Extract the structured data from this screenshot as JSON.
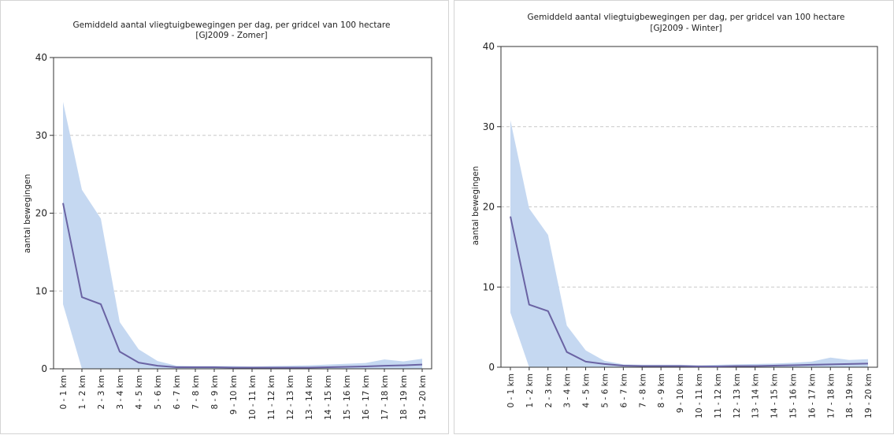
{
  "chart_data": [
    {
      "type": "line",
      "title": "Gemiddeld aantal vliegtuigbewegingen per dag, per gridcel van 100 hectare",
      "subtitle": "[GJ2009 - Zomer]",
      "xlabel": "",
      "ylabel": "aantal bewegingen",
      "ylim": [
        0,
        40
      ],
      "yticks": [
        0,
        10,
        20,
        30,
        40
      ],
      "grid": true,
      "categories": [
        "0 - 1 km",
        "1 - 2 km",
        "2 - 3 km",
        "3 - 4 km",
        "4 - 5 km",
        "5 - 6 km",
        "6 - 7 km",
        "7 - 8 km",
        "8 - 9 km",
        "9 - 10 km",
        "10 - 11 km",
        "11 - 12 km",
        "12 - 13 km",
        "13 - 14 km",
        "14 - 15 km",
        "15 - 16 km",
        "16 - 17 km",
        "17 - 18 km",
        "18 - 19 km",
        "19 - 20 km"
      ],
      "series": [
        {
          "values": [
            21.3,
            9.2,
            8.3,
            2.2,
            0.8,
            0.4,
            0.2,
            0.2,
            0.2,
            0.15,
            0.15,
            0.15,
            0.15,
            0.15,
            0.2,
            0.25,
            0.3,
            0.4,
            0.45,
            0.55
          ]
        }
      ],
      "band": {
        "upper": [
          34.3,
          23.0,
          19.3,
          6.0,
          2.5,
          1.0,
          0.4,
          0.35,
          0.35,
          0.35,
          0.3,
          0.35,
          0.4,
          0.45,
          0.55,
          0.65,
          0.75,
          1.2,
          0.95,
          1.3
        ],
        "lower": [
          8.3,
          0,
          0,
          0,
          0,
          0,
          0,
          0,
          0,
          0,
          0,
          0,
          0,
          0,
          0,
          0,
          0,
          0,
          0,
          0
        ]
      },
      "colors": {
        "line": "#6a63a3",
        "band": "#c5d8f1",
        "grid": "#c8c8c8"
      }
    },
    {
      "type": "line",
      "title": "Gemiddeld aantal vliegtuigbewegingen per dag, per gridcel van 100 hectare",
      "subtitle": "[GJ2009 - Winter]",
      "xlabel": "",
      "ylabel": "aantal bewegingen",
      "ylim": [
        0,
        40
      ],
      "yticks": [
        0,
        10,
        20,
        30,
        40
      ],
      "grid": true,
      "categories": [
        "0 - 1 km",
        "1 - 2 km",
        "2 - 3 km",
        "3 - 4 km",
        "4 - 5 km",
        "5 - 6 km",
        "6 - 7 km",
        "7 - 8 km",
        "8 - 9 km",
        "9 - 10 km",
        "10 - 11 km",
        "11 - 12 km",
        "12 - 13 km",
        "13 - 14 km",
        "14 - 15 km",
        "15 - 16 km",
        "16 - 17 km",
        "17 - 18 km",
        "18 - 19 km",
        "19 - 20 km"
      ],
      "series": [
        {
          "values": [
            18.8,
            7.8,
            7.0,
            1.9,
            0.7,
            0.4,
            0.2,
            0.15,
            0.15,
            0.15,
            0.1,
            0.1,
            0.15,
            0.15,
            0.2,
            0.25,
            0.3,
            0.35,
            0.4,
            0.45
          ]
        }
      ],
      "band": {
        "upper": [
          30.8,
          19.8,
          16.5,
          5.2,
          2.1,
          0.8,
          0.35,
          0.3,
          0.3,
          0.3,
          0.25,
          0.3,
          0.35,
          0.4,
          0.45,
          0.55,
          0.7,
          1.2,
          0.9,
          1.0
        ],
        "lower": [
          6.8,
          0,
          0,
          0,
          0,
          0,
          0,
          0,
          0,
          0,
          0,
          0,
          0,
          0,
          0,
          0,
          0,
          0,
          0,
          0
        ]
      },
      "colors": {
        "line": "#6a63a3",
        "band": "#c5d8f1",
        "grid": "#c8c8c8"
      }
    }
  ]
}
